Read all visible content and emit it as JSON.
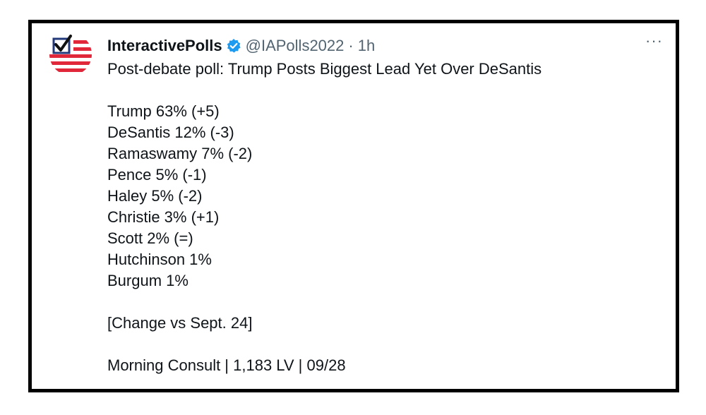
{
  "tweet": {
    "display_name": "InteractivePolls",
    "handle": "@IAPolls2022",
    "separator": "·",
    "time": "1h",
    "more_label": "···",
    "headline": "Post-debate poll: Trump Posts Biggest Lead Yet Over DeSantis",
    "results": [
      "Trump 63% (+5)",
      "DeSantis 12% (-3)",
      "Ramaswamy 7% (-2)",
      "Pence 5% (-1)",
      "Haley 5% (-2)",
      "Christie 3% (+1)",
      "Scott 2% (=)",
      "Hutchinson 1%",
      "Burgum 1%"
    ],
    "note": "[Change vs Sept. 24]",
    "source": "Morning Consult | 1,183 LV | 09/28"
  },
  "icons": {
    "avatar": "checkbox-flag-logo",
    "verified": "verified-badge-icon",
    "more": "more-options-icon"
  },
  "colors": {
    "verified_blue": "#1d9bf0",
    "flag_red": "#e0283a",
    "flag_navy": "#233a7a",
    "secondary_text": "#536471"
  }
}
